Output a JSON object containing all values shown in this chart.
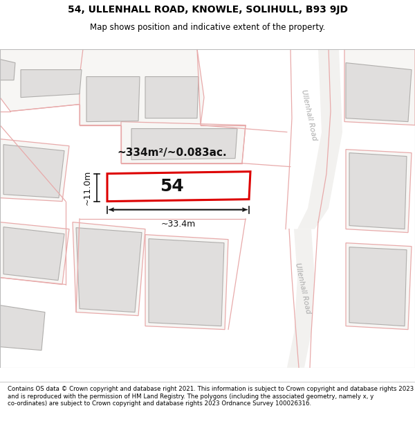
{
  "title": "54, ULLENHALL ROAD, KNOWLE, SOLIHULL, B93 9JD",
  "subtitle": "Map shows position and indicative extent of the property.",
  "copyright": "Contains OS data © Crown copyright and database right 2021. This information is subject to Crown copyright and database rights 2023 and is reproduced with the permission of HM Land Registry. The polygons (including the associated geometry, namely x, y co-ordinates) are subject to Crown copyright and database rights 2023 Ordnance Survey 100026316.",
  "area_text": "~334m²/~0.083ac.",
  "plot_number": "54",
  "dim_width": "~33.4m",
  "dim_height": "~11.0m",
  "road_label_1": "Ullenhall Road",
  "road_label_2": "Ullenhall Road",
  "map_bg": "#f7f6f4",
  "building_fill": "#e0dedd",
  "building_edge": "#b0aeac",
  "plot_outline_color": "#e8aaaa",
  "highlight_fill": "#ffffff",
  "highlight_edge": "#dd0000",
  "road_fill": "#f0eeec",
  "road_label_color": "#aaaaaa",
  "title_fontsize": 10,
  "subtitle_fontsize": 8.5,
  "footer_fontsize": 6.2
}
